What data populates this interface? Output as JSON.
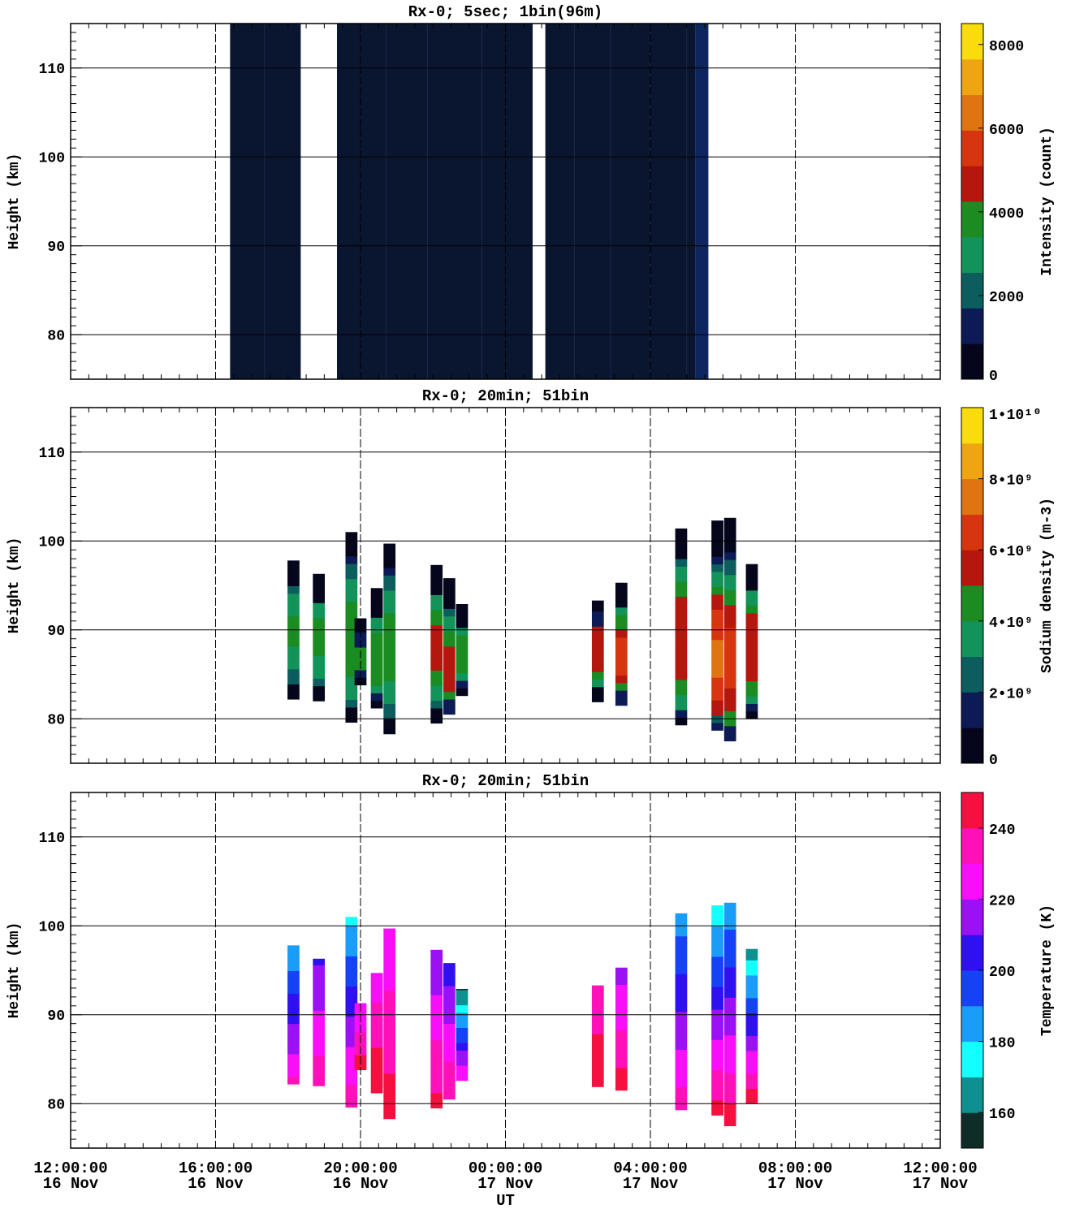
{
  "x_axis": {
    "xlabel": "UT",
    "ticks": [
      {
        "time": "12:00:00",
        "date": "16 Nov"
      },
      {
        "time": "16:00:00",
        "date": "16 Nov"
      },
      {
        "time": "20:00:00",
        "date": "16 Nov"
      },
      {
        "time": "00:00:00",
        "date": "17 Nov"
      },
      {
        "time": "04:00:00",
        "date": "17 Nov"
      },
      {
        "time": "08:00:00",
        "date": "17 Nov"
      },
      {
        "time": "12:00:00",
        "date": "17 Nov"
      }
    ]
  },
  "chart_data": [
    {
      "type": "heatmap",
      "title": "Rx-0;  5sec; 1bin(96m)",
      "ylabel": "Height (km)",
      "xlim_hours_since_16Nov_00UT": [
        12,
        36
      ],
      "ylim": [
        75,
        115
      ],
      "yticks": [
        80,
        90,
        100,
        110
      ],
      "colorbar": {
        "label": "Intensity (count)",
        "range": [
          0,
          8500
        ],
        "tick_labels": [
          "0",
          "2000",
          "4000",
          "6000",
          "8000"
        ],
        "tick_values": [
          0,
          2000,
          4000,
          6000,
          8000
        ],
        "colors": [
          "#05051c",
          "#0c1a55",
          "#0c5d5d",
          "#12935a",
          "#1a8c22",
          "#b5170f",
          "#d6350f",
          "#e07410",
          "#eea511",
          "#f8dc0c"
        ]
      },
      "columns": [
        {
          "start_hour": 16.4,
          "end_hour": 18.35,
          "color": "#0a1530"
        },
        {
          "start_hour": 19.35,
          "end_hour": 24.75,
          "color": "#0a1530"
        },
        {
          "start_hour": 25.1,
          "end_hour": 29.25,
          "color": "#0a1530"
        },
        {
          "start_hour": 29.25,
          "end_hour": 29.6,
          "color": "#0e2660"
        }
      ]
    },
    {
      "type": "heatmap",
      "title": "Rx-0; 20min; 51bin",
      "ylabel": "Height (km)",
      "xlim_hours_since_16Nov_00UT": [
        12,
        36
      ],
      "ylim": [
        75,
        115
      ],
      "yticks": [
        80,
        90,
        100,
        110
      ],
      "colorbar": {
        "label": "Sodium density (m-3)",
        "range": [
          0,
          10000000000.0
        ],
        "tick_labels": [
          "0",
          "2•10⁹",
          "4•10⁹",
          "6•10⁹",
          "8•10⁹",
          "1•10¹⁰"
        ],
        "tick_values": [
          0,
          2000000000.0,
          4000000000.0,
          6000000000.0,
          8000000000.0,
          10000000000.0
        ],
        "colors": [
          "#05051c",
          "#0c1a55",
          "#0c5d5d",
          "#12935a",
          "#1a8c22",
          "#b5170f",
          "#d6350f",
          "#e07410",
          "#eea511",
          "#f8dc0c"
        ]
      },
      "profiles": [
        {
          "hour": 18.15,
          "bottom": 82.2,
          "top": 97.8,
          "peak": 90,
          "max": 4200000000.0
        },
        {
          "hour": 18.85,
          "bottom": 82.0,
          "top": 96.3,
          "peak": 89,
          "max": 4400000000.0
        },
        {
          "hour": 19.75,
          "bottom": 79.6,
          "top": 101.0,
          "peak": 89,
          "max": 4600000000.0
        },
        {
          "hour": 20.0,
          "bottom": 83.8,
          "top": 91.3,
          "peak": 87,
          "max": 4600000000.0
        },
        {
          "hour": 20.45,
          "bottom": 81.2,
          "top": 94.7,
          "peak": 87,
          "max": 4800000000.0
        },
        {
          "hour": 20.8,
          "bottom": 78.3,
          "top": 99.7,
          "peak": 88,
          "max": 4600000000.0
        },
        {
          "hour": 22.1,
          "bottom": 79.5,
          "top": 97.3,
          "peak": 88,
          "max": 5400000000.0
        },
        {
          "hour": 22.45,
          "bottom": 80.5,
          "top": 95.8,
          "peak": 86,
          "max": 5600000000.0
        },
        {
          "hour": 22.8,
          "bottom": 82.6,
          "top": 92.9,
          "peak": 87,
          "max": 4800000000.0
        },
        {
          "hour": 26.55,
          "bottom": 81.9,
          "top": 93.3,
          "peak": 88,
          "max": 6000000000.0
        },
        {
          "hour": 27.2,
          "bottom": 81.5,
          "top": 95.3,
          "peak": 87,
          "max": 6400000000.0
        },
        {
          "hour": 28.85,
          "bottom": 79.3,
          "top": 101.4,
          "peak": 89,
          "max": 6000000000.0
        },
        {
          "hour": 29.85,
          "bottom": 78.7,
          "top": 102.3,
          "peak": 87,
          "max": 7200000000.0
        },
        {
          "hour": 30.2,
          "bottom": 77.5,
          "top": 102.6,
          "peak": 87,
          "max": 6400000000.0
        },
        {
          "hour": 30.8,
          "bottom": 80.0,
          "top": 97.4,
          "peak": 88,
          "max": 6000000000.0
        }
      ]
    },
    {
      "type": "heatmap",
      "title": "Rx-0; 20min; 51bin",
      "ylabel": "Height (km)",
      "xlim_hours_since_16Nov_00UT": [
        12,
        36
      ],
      "ylim": [
        75,
        115
      ],
      "yticks": [
        80,
        90,
        100,
        110
      ],
      "colorbar": {
        "label": "Temperature (K)",
        "range": [
          150,
          250
        ],
        "tick_labels": [
          "160",
          "180",
          "200",
          "220",
          "240"
        ],
        "tick_values": [
          160,
          180,
          200,
          220,
          240
        ],
        "colors": [
          "#0e2d28",
          "#0e9090",
          "#14ffff",
          "#1a9df8",
          "#1542f5",
          "#2f10f0",
          "#9b10f5",
          "#f80ef8",
          "#ff10b8",
          "#f51040"
        ]
      },
      "profiles": [
        {
          "hour": 18.15,
          "bottom": 82.2,
          "top": 97.8,
          "temp_top": 182,
          "temp_bottom": 232
        },
        {
          "hour": 18.85,
          "bottom": 82.0,
          "top": 96.3,
          "temp_top": 208,
          "temp_bottom": 236
        },
        {
          "hour": 19.75,
          "bottom": 79.6,
          "top": 101.0,
          "temp_top": 178,
          "temp_bottom": 238
        },
        {
          "hour": 20.0,
          "bottom": 83.8,
          "top": 91.3,
          "temp_top": 220,
          "temp_bottom": 245
        },
        {
          "hour": 20.45,
          "bottom": 81.2,
          "top": 94.7,
          "temp_top": 225,
          "temp_bottom": 248
        },
        {
          "hour": 20.8,
          "bottom": 78.3,
          "top": 99.7,
          "temp_top": 222,
          "temp_bottom": 246
        },
        {
          "hour": 22.1,
          "bottom": 79.5,
          "top": 97.3,
          "temp_top": 210,
          "temp_bottom": 244
        },
        {
          "hour": 22.45,
          "bottom": 80.5,
          "top": 95.8,
          "temp_top": 205,
          "temp_bottom": 240
        },
        {
          "hour": 22.8,
          "bottom": 82.6,
          "top": 92.9,
          "temp_top": 158,
          "temp_bottom": 232
        },
        {
          "hour": 26.55,
          "bottom": 81.9,
          "top": 93.3,
          "temp_top": 238,
          "temp_bottom": 242
        },
        {
          "hour": 27.2,
          "bottom": 81.5,
          "top": 95.3,
          "temp_top": 215,
          "temp_bottom": 246
        },
        {
          "hour": 28.85,
          "bottom": 79.3,
          "top": 101.4,
          "temp_top": 185,
          "temp_bottom": 236
        },
        {
          "hour": 29.85,
          "bottom": 78.7,
          "top": 102.3,
          "temp_top": 172,
          "temp_bottom": 246
        },
        {
          "hour": 30.2,
          "bottom": 77.5,
          "top": 102.6,
          "temp_top": 182,
          "temp_bottom": 246
        },
        {
          "hour": 30.8,
          "bottom": 80.0,
          "top": 97.4,
          "temp_top": 165,
          "temp_bottom": 248
        }
      ]
    }
  ]
}
